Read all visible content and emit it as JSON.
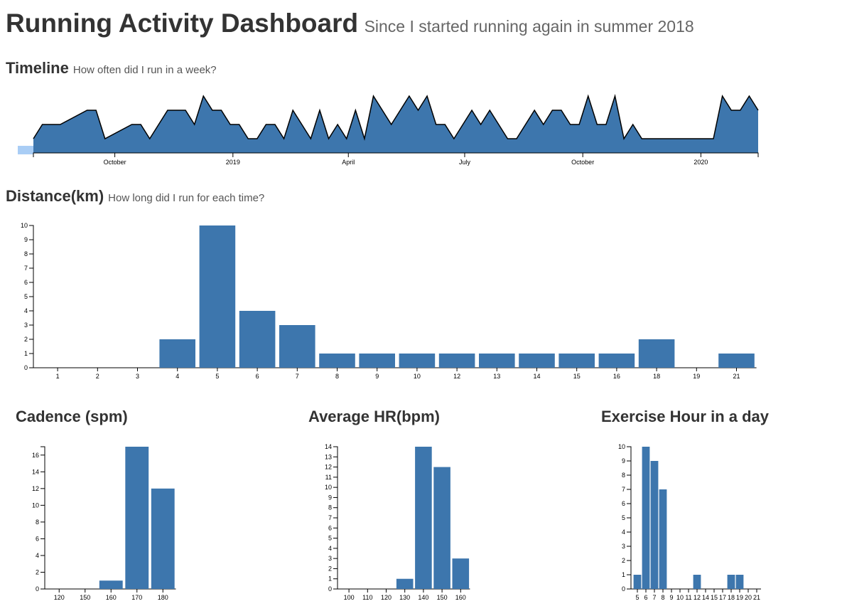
{
  "header": {
    "title": "Running Activity Dashboard",
    "subtitle": "Since I started running again in summer 2018"
  },
  "chart_data": [
    {
      "type": "area",
      "title": "Timeline",
      "subtitle": "How often did I run in a week?",
      "color": "#3d76ad",
      "x": [
        0,
        1,
        3,
        6,
        7,
        8,
        11,
        12,
        13,
        15,
        17,
        18,
        19,
        20,
        21,
        22,
        23,
        24,
        25,
        26,
        27,
        28,
        29,
        30,
        31,
        32,
        33,
        34,
        35,
        36,
        37,
        38,
        40,
        42,
        43,
        44,
        45,
        46,
        47,
        49,
        50,
        51,
        53,
        54,
        56,
        57,
        58,
        59,
        60,
        61,
        62,
        63,
        64,
        65,
        66,
        67,
        68,
        76,
        77,
        78,
        79,
        80,
        81
      ],
      "values": [
        1,
        2,
        2,
        3,
        3,
        1,
        2,
        2,
        1,
        3,
        3,
        2,
        4,
        3,
        3,
        2,
        2,
        1,
        1,
        2,
        2,
        1,
        3,
        2,
        1,
        3,
        1,
        2,
        1,
        3,
        1,
        4,
        2,
        4,
        3,
        4,
        2,
        2,
        1,
        3,
        2,
        3,
        1,
        1,
        3,
        2,
        3,
        3,
        2,
        2,
        4,
        2,
        2,
        4,
        1,
        2,
        1,
        1,
        4,
        3,
        3,
        4,
        3
      ],
      "xlim": [
        0,
        81
      ],
      "xticks": [
        {
          "value": 9.1,
          "label": "October"
        },
        {
          "value": 22.3,
          "label": "2019"
        },
        {
          "value": 35.2,
          "label": "April"
        },
        {
          "value": 48.2,
          "label": "July"
        },
        {
          "value": 61.4,
          "label": "October"
        },
        {
          "value": 74.6,
          "label": "2020"
        }
      ],
      "ylim": [
        0,
        4
      ]
    },
    {
      "type": "bar",
      "title": "Distance(km)",
      "subtitle": "How long did I run for each time?",
      "color": "#3d76ad",
      "categories": [
        "1",
        "2",
        "3",
        "4",
        "5",
        "6",
        "7",
        "8",
        "9",
        "10",
        "12",
        "13",
        "14",
        "15",
        "16",
        "18",
        "19",
        "21"
      ],
      "values": [
        0,
        0,
        0,
        2,
        10,
        4,
        3,
        1,
        1,
        1,
        1,
        1,
        1,
        1,
        1,
        2,
        0,
        1
      ],
      "ylim": [
        0,
        10
      ],
      "yticks": [
        0,
        1,
        2,
        3,
        4,
        5,
        6,
        7,
        8,
        9,
        10
      ]
    },
    {
      "type": "bar",
      "title": "Cadence (spm)",
      "color": "#3d76ad",
      "categories": [
        "120",
        "150",
        "160",
        "170",
        "180"
      ],
      "values": [
        0,
        0,
        1,
        17,
        12
      ],
      "ylim": [
        0,
        17
      ],
      "yticks": [
        0,
        2,
        4,
        6,
        8,
        10,
        12,
        14,
        16
      ]
    },
    {
      "type": "bar",
      "title": "Average HR(bpm)",
      "color": "#3d76ad",
      "categories": [
        "100",
        "110",
        "120",
        "130",
        "140",
        "150",
        "160"
      ],
      "values": [
        0,
        0,
        0,
        1,
        14,
        12,
        3
      ],
      "ylim": [
        0,
        14
      ],
      "yticks": [
        0,
        1,
        2,
        3,
        4,
        5,
        6,
        7,
        8,
        9,
        10,
        11,
        12,
        13,
        14
      ]
    },
    {
      "type": "bar",
      "title": "Exercise Hour in a day",
      "color": "#3d76ad",
      "categories": [
        "5",
        "6",
        "7",
        "8",
        "9",
        "10",
        "11",
        "12",
        "14",
        "15",
        "17",
        "18",
        "19",
        "20",
        "21"
      ],
      "values": [
        1,
        10,
        9,
        7,
        0,
        0,
        0,
        1,
        0,
        0,
        0,
        1,
        1,
        0,
        0
      ],
      "ylim": [
        0,
        10
      ],
      "yticks": [
        0,
        1,
        2,
        3,
        4,
        5,
        6,
        7,
        8,
        9,
        10
      ]
    }
  ]
}
